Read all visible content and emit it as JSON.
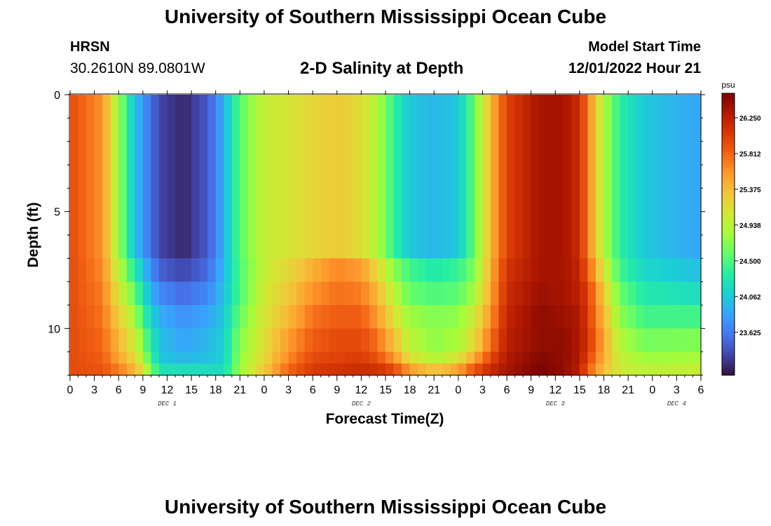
{
  "header": {
    "title": "University of Southern Mississippi Ocean Cube",
    "station": "HRSN",
    "coords": "30.2610N  89.0801W",
    "chart_title": "2-D Salinity at Depth",
    "model_label": "Model Start Time",
    "model_time": "12/01/2022 Hour 21"
  },
  "footer": {
    "title": "University of Southern Mississippi Ocean Cube"
  },
  "colors": {
    "cmap": [
      "#30123b",
      "#4145ab",
      "#4675ed",
      "#39a2fc",
      "#1bcfd4",
      "#24eca6",
      "#61fc6c",
      "#a4fc3b",
      "#d1e834",
      "#f3c63a",
      "#fe9b2d",
      "#f36315",
      "#d93806",
      "#b11901",
      "#7a0403"
    ]
  },
  "chart_data": {
    "type": "heatmap",
    "title": "2-D Salinity at Depth",
    "xlabel": "Forecast Time(Z)",
    "ylabel": "Depth (ft)",
    "x_ticks": [
      "0",
      "3",
      "6",
      "9",
      "12",
      "15",
      "18",
      "21",
      "0",
      "3",
      "6",
      "9",
      "12",
      "15",
      "18",
      "21",
      "0",
      "3",
      "6",
      "9",
      "12",
      "15",
      "18",
      "21",
      "0",
      "3",
      "6"
    ],
    "x_range_hours": [
      0,
      78
    ],
    "day_labels": [
      {
        "label": "DEC 1",
        "hour": 12
      },
      {
        "label": "DEC 2",
        "hour": 36
      },
      {
        "label": "DEC 3",
        "hour": 60
      },
      {
        "label": "DEC 4",
        "hour": 75
      }
    ],
    "y_ticks": [
      "0",
      "5",
      "10"
    ],
    "y_tick_values": [
      0,
      5,
      10
    ],
    "y_range_ft": [
      0,
      12
    ],
    "colorbar": {
      "unit": "psu",
      "ticks": [
        "26.250",
        "25.812",
        "25.375",
        "24.938",
        "24.500",
        "24.062",
        "23.625"
      ],
      "tick_values": [
        26.25,
        25.812,
        25.375,
        24.938,
        24.5,
        24.062,
        23.625
      ],
      "range": [
        23.1,
        26.55
      ]
    },
    "depth_bands_ft": [
      [
        0,
        7
      ],
      [
        7,
        8
      ],
      [
        8,
        9
      ],
      [
        9,
        10
      ],
      [
        10,
        11
      ],
      [
        11,
        11.5
      ],
      [
        11.5,
        12
      ]
    ],
    "profiles": [
      {
        "hour": 0,
        "values": [
          25.95,
          25.95,
          25.95,
          25.95,
          25.95,
          25.95,
          25.95
        ]
      },
      {
        "hour": 4,
        "values": [
          25.6,
          25.65,
          25.7,
          25.75,
          25.8,
          25.85,
          25.9
        ]
      },
      {
        "hour": 6,
        "values": [
          24.8,
          24.95,
          25.1,
          25.25,
          25.4,
          25.5,
          25.7
        ]
      },
      {
        "hour": 8,
        "values": [
          24.0,
          24.3,
          24.6,
          24.85,
          25.05,
          25.2,
          25.4
        ]
      },
      {
        "hour": 9,
        "values": [
          23.8,
          24.0,
          24.2,
          24.4,
          24.65,
          24.85,
          25.1
        ]
      },
      {
        "hour": 11,
        "values": [
          23.35,
          23.5,
          23.7,
          23.9,
          24.0,
          24.05,
          24.25
        ]
      },
      {
        "hour": 14,
        "values": [
          23.2,
          23.35,
          23.55,
          23.75,
          23.85,
          23.95,
          24.2
        ]
      },
      {
        "hour": 17,
        "values": [
          23.45,
          23.55,
          23.7,
          23.85,
          23.95,
          24.0,
          24.2
        ]
      },
      {
        "hour": 19,
        "values": [
          23.9,
          23.95,
          24.0,
          24.05,
          24.1,
          24.1,
          24.2
        ]
      },
      {
        "hour": 21,
        "values": [
          24.55,
          24.5,
          24.5,
          24.6,
          24.7,
          24.75,
          24.8
        ]
      },
      {
        "hour": 24,
        "values": [
          25.0,
          25.0,
          25.05,
          25.1,
          25.15,
          25.2,
          25.3
        ]
      },
      {
        "hour": 27,
        "values": [
          25.1,
          25.2,
          25.3,
          25.4,
          25.55,
          25.65,
          25.8
        ]
      },
      {
        "hour": 30,
        "values": [
          25.2,
          25.45,
          25.6,
          25.75,
          25.85,
          25.95,
          26.05
        ]
      },
      {
        "hour": 33,
        "values": [
          25.3,
          25.65,
          25.75,
          25.85,
          25.95,
          26.0,
          26.1
        ]
      },
      {
        "hour": 36,
        "values": [
          25.15,
          25.55,
          25.7,
          25.85,
          25.95,
          26.05,
          26.15
        ]
      },
      {
        "hour": 38,
        "values": [
          24.9,
          25.2,
          25.4,
          25.55,
          25.75,
          25.9,
          26.1
        ]
      },
      {
        "hour": 40,
        "values": [
          24.4,
          24.75,
          24.95,
          25.15,
          25.35,
          25.6,
          25.95
        ]
      },
      {
        "hour": 42,
        "values": [
          24.05,
          24.45,
          24.6,
          24.8,
          24.95,
          25.15,
          25.55
        ]
      },
      {
        "hour": 45,
        "values": [
          23.95,
          24.3,
          24.5,
          24.7,
          24.75,
          24.9,
          25.3
        ]
      },
      {
        "hour": 48,
        "values": [
          24.05,
          24.4,
          24.55,
          24.75,
          24.85,
          25.1,
          25.5
        ]
      },
      {
        "hour": 50,
        "values": [
          24.6,
          24.7,
          24.85,
          25.05,
          25.2,
          25.5,
          25.9
        ]
      },
      {
        "hour": 52,
        "values": [
          25.4,
          25.45,
          25.5,
          25.6,
          25.75,
          25.95,
          26.15
        ]
      },
      {
        "hour": 54,
        "values": [
          26.0,
          26.1,
          26.15,
          26.2,
          26.25,
          26.3,
          26.35
        ]
      },
      {
        "hour": 58,
        "values": [
          26.35,
          26.35,
          26.4,
          26.45,
          26.45,
          26.5,
          26.55
        ]
      },
      {
        "hour": 61,
        "values": [
          26.35,
          26.35,
          26.35,
          26.4,
          26.45,
          26.45,
          26.45
        ]
      },
      {
        "hour": 63,
        "values": [
          26.15,
          26.2,
          26.25,
          26.3,
          26.3,
          26.3,
          26.25
        ]
      },
      {
        "hour": 64,
        "values": [
          25.7,
          25.85,
          26.0,
          26.05,
          26.1,
          26.0,
          25.85
        ]
      },
      {
        "hour": 66,
        "values": [
          24.9,
          25.1,
          25.3,
          25.4,
          25.5,
          25.45,
          25.35
        ]
      },
      {
        "hour": 68,
        "values": [
          24.35,
          24.45,
          24.6,
          24.75,
          24.9,
          25.0,
          25.05
        ]
      },
      {
        "hour": 71,
        "values": [
          24.05,
          24.15,
          24.3,
          24.45,
          24.65,
          24.8,
          24.95
        ]
      },
      {
        "hour": 78,
        "values": [
          23.85,
          24.0,
          24.2,
          24.45,
          24.7,
          24.85,
          25.0
        ]
      }
    ]
  }
}
